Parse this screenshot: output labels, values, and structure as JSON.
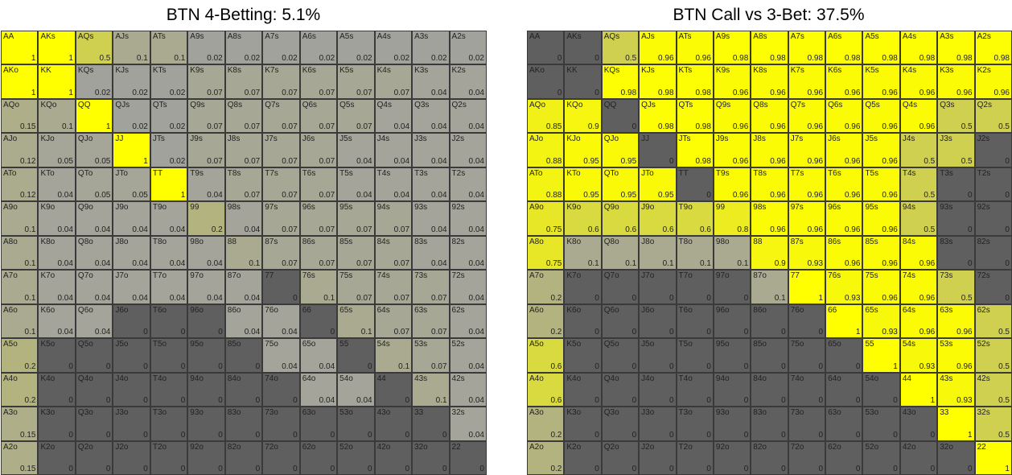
{
  "ranks": [
    "A",
    "K",
    "Q",
    "J",
    "T",
    "9",
    "8",
    "7",
    "6",
    "5",
    "4",
    "3",
    "2"
  ],
  "colors": {
    "low": "#5f5f5f",
    "mid": "#a0a0a0",
    "high": "#ffff00"
  },
  "chart_data": [
    {
      "type": "heatmap",
      "title": "BTN 4-Betting: 5.1%",
      "rows": [
        [
          1,
          1,
          0.5,
          0.1,
          0.1,
          0.02,
          0.02,
          0.02,
          0.02,
          0.02,
          0.02,
          0.02,
          0.02
        ],
        [
          1,
          1,
          0.02,
          0.02,
          0.02,
          0.07,
          0.07,
          0.07,
          0.07,
          0.07,
          0.07,
          0.04,
          0.04
        ],
        [
          0.15,
          0.1,
          1,
          0.02,
          0.02,
          0.07,
          0.07,
          0.07,
          0.07,
          0.07,
          0.04,
          0.04,
          0.04
        ],
        [
          0.12,
          0.05,
          0.05,
          1,
          0.02,
          0.07,
          0.07,
          0.07,
          0.07,
          0.04,
          0.04,
          0.04,
          0.04
        ],
        [
          0.12,
          0.04,
          0.05,
          0.05,
          1,
          0.04,
          0.07,
          0.07,
          0.07,
          0.04,
          0.04,
          0.04,
          0.04
        ],
        [
          0.1,
          0.04,
          0.04,
          0.04,
          0.04,
          0.2,
          0.04,
          0.07,
          0.07,
          0.07,
          0.07,
          0.04,
          0.04
        ],
        [
          0.1,
          0.04,
          0.04,
          0.04,
          0.04,
          0.04,
          0.1,
          0.07,
          0.07,
          0.07,
          0.07,
          0.04,
          0.04
        ],
        [
          0.1,
          0.04,
          0.04,
          0.04,
          0.04,
          0.04,
          0.04,
          0,
          0.1,
          0.07,
          0.07,
          0.07,
          0.04
        ],
        [
          0.1,
          0.04,
          0.04,
          0,
          0,
          0,
          0.04,
          0.04,
          0,
          0.1,
          0.07,
          0.07,
          0.04
        ],
        [
          0.2,
          0,
          0,
          0,
          0,
          0,
          0,
          0.04,
          0.04,
          0,
          0.1,
          0.07,
          0.04
        ],
        [
          0.2,
          0,
          0,
          0,
          0,
          0,
          0,
          0,
          0.04,
          0.04,
          0,
          0.1,
          0.04
        ],
        [
          0.15,
          0,
          0,
          0,
          0,
          0,
          0,
          0,
          0,
          0,
          0,
          0,
          0.04
        ],
        [
          0.15,
          0,
          0,
          0,
          0,
          0,
          0,
          0,
          0,
          0,
          0,
          0,
          0
        ]
      ]
    },
    {
      "type": "heatmap",
      "title": "BTN Call vs 3-Bet: 37.5%",
      "rows": [
        [
          0,
          0,
          0.5,
          0.96,
          0.96,
          0.98,
          0.98,
          0.98,
          0.98,
          0.98,
          0.98,
          0.98,
          0.98
        ],
        [
          0,
          0,
          0.98,
          0.98,
          0.98,
          0.96,
          0.96,
          0.96,
          0.96,
          0.96,
          0.96,
          0.96,
          0.96
        ],
        [
          0.85,
          0.9,
          0,
          0.98,
          0.98,
          0.96,
          0.96,
          0.96,
          0.96,
          0.96,
          0.96,
          0.5,
          0.5
        ],
        [
          0.88,
          0.95,
          0.95,
          0,
          0.98,
          0.96,
          0.96,
          0.96,
          0.96,
          0.96,
          0.5,
          0.5,
          0
        ],
        [
          0.88,
          0.95,
          0.95,
          0.95,
          0,
          0.96,
          0.96,
          0.96,
          0.96,
          0.96,
          0.5,
          0,
          0
        ],
        [
          0.75,
          0.6,
          0.6,
          0.6,
          0.6,
          0.8,
          0.96,
          0.96,
          0.96,
          0.96,
          0.5,
          0,
          0
        ],
        [
          0.75,
          0.1,
          0.1,
          0.1,
          0.1,
          0.1,
          0.9,
          0.93,
          0.96,
          0.96,
          0.96,
          0,
          0
        ],
        [
          0.2,
          0,
          0,
          0,
          0,
          0,
          0.1,
          1,
          0.93,
          0.96,
          0.96,
          0.5,
          0
        ],
        [
          0.2,
          0,
          0,
          0,
          0,
          0,
          0,
          0,
          1,
          0.93,
          0.96,
          0.96,
          0.5
        ],
        [
          0.6,
          0,
          0,
          0,
          0,
          0,
          0,
          0,
          0,
          1,
          0.93,
          0.96,
          0.5
        ],
        [
          0.6,
          0,
          0,
          0,
          0,
          0,
          0,
          0,
          0,
          0,
          1,
          0.93,
          0.5
        ],
        [
          0.2,
          0,
          0,
          0,
          0,
          0,
          0,
          0,
          0,
          0,
          0,
          1,
          0.5
        ],
        [
          0.2,
          0,
          0,
          0,
          0,
          0,
          0,
          0,
          0,
          0,
          0,
          0,
          1
        ]
      ]
    }
  ]
}
